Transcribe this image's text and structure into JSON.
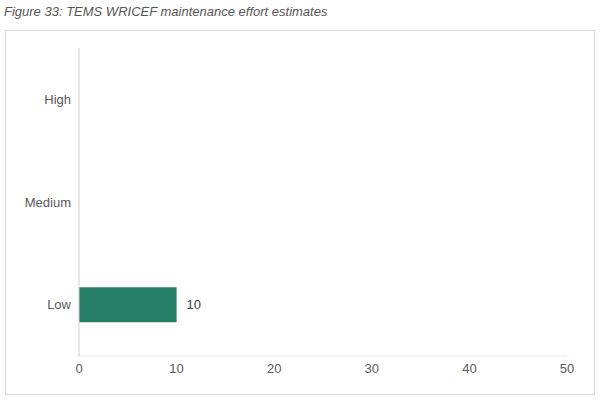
{
  "chart_data": {
    "type": "bar",
    "title": "Figure 33: TEMS WRICEF maintenance effort estimates",
    "orientation": "horizontal",
    "categories": [
      "High",
      "Medium",
      "Low"
    ],
    "values": [
      null,
      null,
      10
    ],
    "color": "#277f65",
    "xlim": [
      0,
      50
    ],
    "xticks": [
      0,
      10,
      20,
      30,
      40,
      50
    ],
    "grid": false,
    "data_labels": true
  }
}
